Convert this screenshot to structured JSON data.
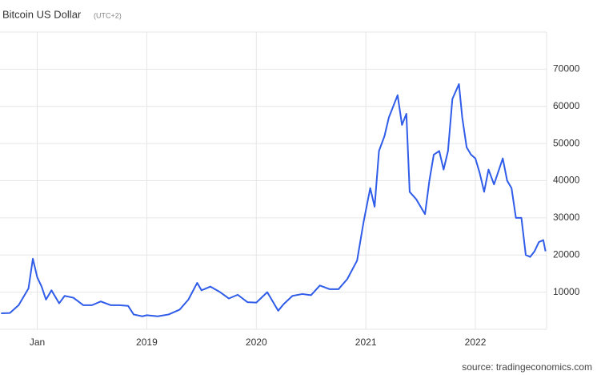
{
  "chart_data": {
    "type": "line",
    "title": "Bitcoin US Dollar",
    "subtitle": "(UTC+2)",
    "source": "source: tradingeconomics.com",
    "x": [
      2017.67,
      2017.75,
      2017.83,
      2017.92,
      2017.96,
      2018.0,
      2018.04,
      2018.08,
      2018.13,
      2018.2,
      2018.25,
      2018.33,
      2018.42,
      2018.5,
      2018.58,
      2018.67,
      2018.75,
      2018.83,
      2018.88,
      2018.96,
      2019.0,
      2019.1,
      2019.2,
      2019.3,
      2019.38,
      2019.46,
      2019.5,
      2019.58,
      2019.67,
      2019.75,
      2019.83,
      2019.92,
      2020.0,
      2020.1,
      2020.2,
      2020.25,
      2020.33,
      2020.42,
      2020.5,
      2020.58,
      2020.67,
      2020.75,
      2020.83,
      2020.92,
      2020.98,
      2021.04,
      2021.08,
      2021.12,
      2021.17,
      2021.21,
      2021.29,
      2021.33,
      2021.37,
      2021.4,
      2021.46,
      2021.5,
      2021.54,
      2021.58,
      2021.62,
      2021.67,
      2021.71,
      2021.75,
      2021.79,
      2021.85,
      2021.88,
      2021.92,
      2021.96,
      2022.0,
      2022.04,
      2022.08,
      2022.12,
      2022.17,
      2022.25,
      2022.29,
      2022.33,
      2022.37,
      2022.42,
      2022.46,
      2022.5,
      2022.54,
      2022.58,
      2022.62,
      2022.64
    ],
    "series": [
      {
        "name": "Bitcoin US Dollar",
        "color": "#2f5ce9",
        "values": [
          4300,
          4400,
          6500,
          11000,
          19000,
          14000,
          11500,
          8000,
          10500,
          7000,
          9000,
          8500,
          6500,
          6500,
          7500,
          6500,
          6500,
          6300,
          4000,
          3500,
          3800,
          3500,
          4000,
          5300,
          8000,
          12500,
          10500,
          11500,
          10000,
          8300,
          9300,
          7300,
          7200,
          10000,
          5000,
          6800,
          9000,
          9500,
          9200,
          11800,
          10800,
          10800,
          13500,
          18500,
          29000,
          38000,
          33000,
          48000,
          52000,
          57000,
          63000,
          55000,
          58000,
          37000,
          35000,
          33000,
          31000,
          40000,
          47000,
          48000,
          43000,
          48000,
          62000,
          66000,
          57000,
          49000,
          47000,
          46000,
          42000,
          37000,
          43000,
          39000,
          46000,
          40000,
          38000,
          30000,
          30000,
          20000,
          19500,
          21000,
          23500,
          24000,
          21000
        ]
      }
    ],
    "xlim": [
      2017.66,
      2022.65
    ],
    "xticks": [
      {
        "value": 2018,
        "label": "Jan"
      },
      2019,
      2020,
      2021,
      2022
    ],
    "ylim": [
      0,
      80000
    ],
    "yticks": [
      10000,
      20000,
      30000,
      40000,
      50000,
      60000,
      70000
    ],
    "grid": true
  }
}
